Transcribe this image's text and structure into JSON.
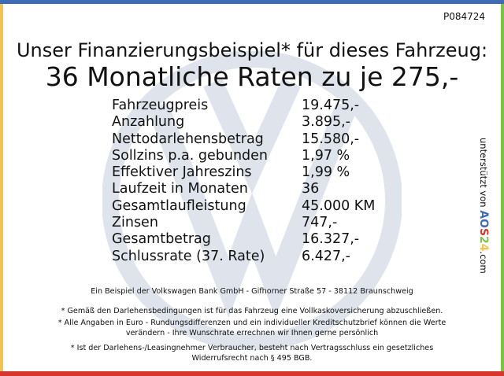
{
  "ref": "P084724",
  "headline": "Unser Finanzierungsbeispiel* für dieses Fahrzeug:",
  "subheadline": "36 Monatliche Raten zu je 275,-",
  "rows": [
    {
      "label": "Fahrzeugpreis",
      "value": "19.475,-"
    },
    {
      "label": "Anzahlung",
      "value": "3.895,-"
    },
    {
      "label": "Nettodarlehensbetrag",
      "value": "15.580,-"
    },
    {
      "label": "Sollzins p.a. gebunden",
      "value": "1,97 %"
    },
    {
      "label": "Effektiver Jahreszins",
      "value": "1,99 %"
    },
    {
      "label": "Laufzeit in Monaten",
      "value": "36"
    },
    {
      "label": "Gesamtlaufleistung",
      "value": "45.000 KM"
    },
    {
      "label": "Zinsen",
      "value": "747,-"
    },
    {
      "label": "Gesamtbetrag",
      "value": "16.327,-"
    },
    {
      "label": "Schlussrate (37. Rate)",
      "value": "6.427,-"
    }
  ],
  "side": {
    "text": "unterstützt von",
    "logo": "AOS24",
    ".com": ".com"
  },
  "footer": {
    "bank": "Ein Beispiel der Volkswagen Bank GmbH - Gifhorner Straße 57 - 38112 Braunschweig",
    "note1": "* Gemäß den Darlehensbedingungen ist für das Fahrzeug eine Vollkaskoversicherung abzuschließen.",
    "note2a": "* Alle Angaben in Euro - Rundungsdifferenzen und ein individueller Kreditschutzbrief können die Werte",
    "note2b": "verändern - Ihre Wunschrate errechnen wir Ihnen gerne persönlich",
    "note3a": "* Ist der Darlehens-/Leasingnehmer Verbraucher, besteht nach Vertragsschluss ein gesetzliches",
    "note3b": "Widerrufsrecht nach § 495 BGB."
  },
  "colors": {
    "top": "#3d6bb5",
    "left": "#f6c24e",
    "right": "#7cc244",
    "bottom": "#d8362b",
    "watermark": "#dfe4ec"
  }
}
